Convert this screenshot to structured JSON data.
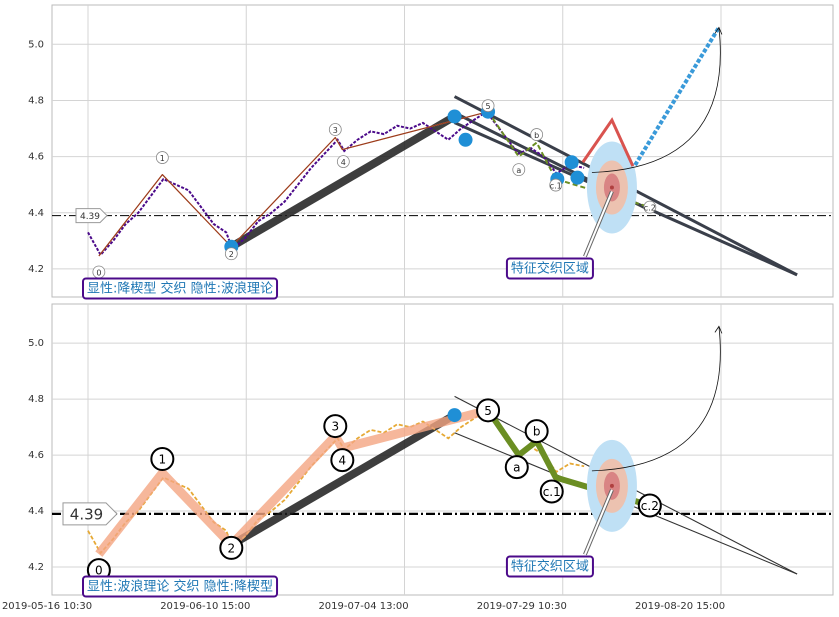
{
  "chart_data": [
    {
      "type": "line",
      "annotation": "显性:降楔型 交织 隐性:波浪理论",
      "xlim": [
        "2019-05-10 17:30",
        "2019-09-05 08:00"
      ],
      "xticks": [
        "2019-05-16 10:30",
        "2019-06-10 15:00",
        "2019-07-04 13:00",
        "2019-07-29 10:30",
        "2019-08-20 15:00"
      ],
      "ylim": [
        4.1,
        5.14
      ],
      "yticks": [
        4.2,
        4.4,
        4.6,
        4.8,
        {
          "value": 5,
          "label": "5.0"
        }
      ],
      "grid": true,
      "color": "#4b0a8a",
      "wave_color": "#9a3b1c",
      "correction_color": "#6b8e23",
      "x": [
        "2019-05-16 10:30",
        "2019-05-18 10:30",
        "2019-05-20 10:30",
        "2019-05-22 10:30",
        "2019-05-24 10:30",
        "2019-05-26 10:30",
        "2019-05-28 10:30",
        "2019-05-30 10:30",
        "2019-06-01 10:30",
        "2019-06-03 10:30",
        "2019-06-05 10:30",
        "2019-06-07 10:30",
        "2019-06-08 10:30",
        "2019-06-10 10:30",
        "2019-06-12 10:30",
        "2019-06-14 10:30",
        "2019-06-16 10:30",
        "2019-06-18 10:30",
        "2019-06-20 10:30",
        "2019-06-22 10:30",
        "2019-06-24 10:30",
        "2019-06-25 10:30",
        "2019-06-27 10:30",
        "2019-06-29 10:30",
        "2019-07-01 10:30",
        "2019-07-03 10:30",
        "2019-07-05 10:30",
        "2019-07-07 10:30",
        "2019-07-09 10:30",
        "2019-07-11 10:30",
        "2019-07-13 10:30",
        "2019-07-15 10:30",
        "2019-07-17 10:30",
        "2019-07-19 10:30",
        "2019-07-21 10:30",
        "2019-07-22 10:30",
        "2019-07-24 10:30",
        "2019-07-26 10:30",
        "2019-07-28 10:30",
        "2019-07-30 10:30",
        "2019-08-01 10:30"
      ],
      "values": [
        4.33,
        4.25,
        4.3,
        4.36,
        4.4,
        4.46,
        4.52,
        4.5,
        4.48,
        4.42,
        4.36,
        4.33,
        4.27,
        4.31,
        4.37,
        4.4,
        4.44,
        4.5,
        4.56,
        4.61,
        4.66,
        4.62,
        4.66,
        4.69,
        4.68,
        4.71,
        4.7,
        4.72,
        4.69,
        4.66,
        4.7,
        4.73,
        4.76,
        4.7,
        4.64,
        4.61,
        4.63,
        4.6,
        4.54,
        4.57,
        4.56
      ],
      "waves": {
        "labels": [
          "0",
          "1",
          "2",
          "3",
          "4",
          "5",
          "a",
          "b",
          "c.1",
          "c.2"
        ],
        "x": [
          "2019-05-18 04:00",
          "2019-05-28 06:30",
          "2019-06-08 06:00",
          "2019-06-24 02:00",
          "2019-06-25 03:30",
          "2019-07-17 16:30",
          "2019-07-22 12:30",
          "2019-07-25 08:00",
          "2019-07-28 08:00",
          "2019-08-10 15:30"
        ],
        "values": [
          4.246,
          4.536,
          4.279,
          4.668,
          4.625,
          4.76,
          4.6,
          4.65,
          4.52,
          4.42
        ]
      },
      "level": 4.39,
      "trend": {
        "x": [
          "2019-06-08 06:00",
          "2019-07-12 10:00"
        ],
        "values": [
          4.279,
          4.743
        ]
      },
      "wedge": [
        {
          "x": [
            "2019-07-12 10:00",
            "2019-08-31 07:00"
          ],
          "values": [
            4.814,
            4.179
          ]
        },
        {
          "x": [
            "2019-07-12 10:00",
            "2019-08-31 07:00"
          ],
          "values": [
            4.721,
            4.179
          ]
        },
        {
          "x": [
            "2019-07-13 08:00",
            "2019-08-10 19:00"
          ],
          "values": [
            4.746,
            4.407
          ]
        }
      ],
      "markers": {
        "x": [
          "2019-06-08 06:00",
          "2019-07-12 10:00",
          "2019-07-14 03:30",
          "2019-07-17 16:30",
          "2019-07-28 14:00",
          "2019-07-30 16:30",
          "2019-07-31 12:00"
        ],
        "values": [
          4.279,
          4.743,
          4.66,
          4.76,
          4.52,
          4.58,
          4.525
        ]
      },
      "projection": [
        {
          "color": "#d9534f",
          "x": [
            "2019-08-01 06:00",
            "2019-08-05 08:00",
            "2019-08-08 06:30"
          ],
          "values": [
            4.58,
            4.73,
            4.566
          ]
        },
        {
          "color": "#3a9ad9",
          "x": [
            "2019-08-08 14:00",
            "2019-08-20 08:00"
          ],
          "values": [
            4.57,
            5.06
          ]
        }
      ],
      "highlight": {
        "x": "2019-08-05 08:00",
        "value": 4.49,
        "label": "特征交织区域"
      },
      "target": {
        "x": "2019-08-20 08:00",
        "value": 5.06
      }
    },
    {
      "type": "line",
      "annotation": "显性:波浪理论 交织 隐性:降楔型",
      "xlim": [
        "2019-05-10 17:30",
        "2019-09-05 08:00"
      ],
      "xticks": [
        "2019-05-16 10:30",
        "2019-06-10 15:00",
        "2019-07-04 13:00",
        "2019-07-29 10:30",
        "2019-08-20 15:00"
      ],
      "ylim": [
        4.1,
        5.14
      ],
      "yticks": [
        4.2,
        4.4,
        4.6,
        4.8,
        {
          "value": 5,
          "label": "5.0"
        }
      ],
      "grid": true,
      "color": "#e6a935",
      "wave_color": "#f4a582",
      "correction_color": "#6b8e23",
      "x": [
        "2019-05-16 10:30",
        "2019-05-18 10:30",
        "2019-05-20 10:30",
        "2019-05-22 10:30",
        "2019-05-24 10:30",
        "2019-05-26 10:30",
        "2019-05-28 10:30",
        "2019-05-30 10:30",
        "2019-06-01 10:30",
        "2019-06-03 10:30",
        "2019-06-05 10:30",
        "2019-06-07 10:30",
        "2019-06-08 10:30",
        "2019-06-10 10:30",
        "2019-06-12 10:30",
        "2019-06-14 10:30",
        "2019-06-16 10:30",
        "2019-06-18 10:30",
        "2019-06-20 10:30",
        "2019-06-22 10:30",
        "2019-06-24 10:30",
        "2019-06-25 10:30",
        "2019-06-27 10:30",
        "2019-06-29 10:30",
        "2019-07-01 10:30",
        "2019-07-03 10:30",
        "2019-07-05 10:30",
        "2019-07-07 10:30",
        "2019-07-09 10:30",
        "2019-07-11 10:30",
        "2019-07-13 10:30",
        "2019-07-15 10:30",
        "2019-07-17 10:30",
        "2019-07-19 10:30",
        "2019-07-21 10:30",
        "2019-07-22 10:30",
        "2019-07-24 10:30",
        "2019-07-26 10:30",
        "2019-07-28 10:30",
        "2019-07-30 10:30",
        "2019-08-01 10:30"
      ],
      "values": [
        4.33,
        4.25,
        4.3,
        4.36,
        4.4,
        4.46,
        4.52,
        4.5,
        4.48,
        4.42,
        4.36,
        4.33,
        4.27,
        4.31,
        4.37,
        4.4,
        4.44,
        4.5,
        4.56,
        4.61,
        4.66,
        4.62,
        4.66,
        4.69,
        4.68,
        4.71,
        4.7,
        4.72,
        4.69,
        4.66,
        4.7,
        4.73,
        4.76,
        4.7,
        4.64,
        4.61,
        4.63,
        4.6,
        4.54,
        4.57,
        4.56
      ],
      "waves": {
        "labels": [
          "0",
          "1",
          "2",
          "3",
          "4",
          "5",
          "a",
          "b",
          "c.1",
          "c.2"
        ],
        "x": [
          "2019-05-18 04:00",
          "2019-05-28 06:30",
          "2019-06-08 06:00",
          "2019-06-24 02:00",
          "2019-06-25 03:30",
          "2019-07-17 16:30",
          "2019-07-22 12:30",
          "2019-07-25 08:00",
          "2019-07-28 08:00",
          "2019-08-10 15:30"
        ],
        "values": [
          4.246,
          4.536,
          4.279,
          4.668,
          4.625,
          4.76,
          4.6,
          4.65,
          4.52,
          4.42
        ]
      },
      "level": 4.39,
      "trend": {
        "x": [
          "2019-06-08 06:00",
          "2019-07-12 10:00"
        ],
        "values": [
          4.279,
          4.743
        ]
      },
      "wedge": [
        {
          "x": [
            "2019-07-12 10:00",
            "2019-08-31 07:00"
          ],
          "values": [
            4.81,
            4.175
          ]
        },
        {
          "x": [
            "2019-07-12 10:00",
            "2019-08-31 07:00"
          ],
          "values": [
            4.68,
            4.175
          ]
        }
      ],
      "markers": {
        "x": [
          "2019-06-08 06:00",
          "2019-07-12 10:00"
        ],
        "values": [
          4.279,
          4.743
        ]
      },
      "highlight": {
        "x": "2019-08-05 08:00",
        "value": 4.49,
        "label": "特征交织区域"
      },
      "target": {
        "x": "2019-08-20 08:00",
        "value": 5.06
      }
    }
  ]
}
